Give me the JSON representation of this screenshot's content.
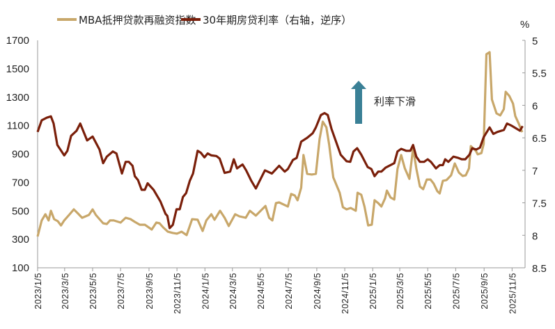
{
  "chart_data": {
    "type": "line",
    "title": "",
    "legend_position": "top",
    "grid": false,
    "left_axis": {
      "ylim": [
        100,
        1700
      ],
      "ticks": [
        "1700",
        "1500",
        "1300",
        "1100",
        "900",
        "700",
        "500",
        "300",
        "100"
      ]
    },
    "right_axis": {
      "unit": "%",
      "ylim": [
        5,
        8.5
      ],
      "reversed": true,
      "ticks": [
        "5",
        "5.5",
        "6",
        "6.5",
        "7",
        "7.5",
        "8",
        "8.5"
      ]
    },
    "x_ticks": [
      "2023/1/5",
      "2023/3/5",
      "2023/5/5",
      "2023/7/5",
      "2023/9/5",
      "2023/11/5",
      "2024/1/5",
      "2024/3/5",
      "2024/5/5",
      "2024/7/5",
      "2024/9/5",
      "2024/11/5",
      "2025/1/5",
      "2025/3/5",
      "2025/5/5",
      "2025/7/5",
      "2025/9/5",
      "2025/11/5"
    ],
    "annotation": {
      "text": "利率下滑",
      "arrow_color": "#3a8096",
      "arrow_direction": "up"
    },
    "series": [
      {
        "name": "MBA抵押贷款再融资指数",
        "axis": "left",
        "color": "#c8a76a",
        "points": [
          [
            "2023/1/5",
            320
          ],
          [
            "2023/1/14",
            433
          ],
          [
            "2023/1/22",
            477
          ],
          [
            "2023/1/29",
            433
          ],
          [
            "2023/2/3",
            501
          ],
          [
            "2023/2/10",
            442
          ],
          [
            "2023/2/18",
            428
          ],
          [
            "2023/2/25",
            398
          ],
          [
            "2023/3/4",
            433
          ],
          [
            "2023/3/16",
            477
          ],
          [
            "2023/3/25",
            511
          ],
          [
            "2023/4/3",
            482
          ],
          [
            "2023/4/12",
            452
          ],
          [
            "2023/4/27",
            472
          ],
          [
            "2023/5/5",
            511
          ],
          [
            "2023/5/12",
            472
          ],
          [
            "2023/5/28",
            413
          ],
          [
            "2023/6/5",
            408
          ],
          [
            "2023/6/12",
            433
          ],
          [
            "2023/6/20",
            433
          ],
          [
            "2023/7/5",
            418
          ],
          [
            "2023/7/16",
            452
          ],
          [
            "2023/7/27",
            442
          ],
          [
            "2023/8/5",
            423
          ],
          [
            "2023/8/16",
            403
          ],
          [
            "2023/8/27",
            403
          ],
          [
            "2023/9/11",
            369
          ],
          [
            "2023/9/21",
            418
          ],
          [
            "2023/9/28",
            413
          ],
          [
            "2023/10/6",
            384
          ],
          [
            "2023/10/16",
            354
          ],
          [
            "2023/10/27",
            345
          ],
          [
            "2023/11/5",
            340
          ],
          [
            "2023/11/15",
            354
          ],
          [
            "2023/11/26",
            330
          ],
          [
            "2023/12/8",
            442
          ],
          [
            "2023/12/20",
            438
          ],
          [
            "2023/12/31",
            359
          ],
          [
            "2024/1/8",
            433
          ],
          [
            "2024/1/19",
            477
          ],
          [
            "2024/1/26",
            438
          ],
          [
            "2024/2/7",
            501
          ],
          [
            "2024/2/17",
            452
          ],
          [
            "2024/2/26",
            394
          ],
          [
            "2024/3/11",
            477
          ],
          [
            "2024/3/20",
            462
          ],
          [
            "2024/4/3",
            452
          ],
          [
            "2024/4/12",
            501
          ],
          [
            "2024/4/25",
            467
          ],
          [
            "2024/5/7",
            506
          ],
          [
            "2024/5/16",
            535
          ],
          [
            "2024/5/24",
            452
          ],
          [
            "2024/5/31",
            433
          ],
          [
            "2024/6/8",
            555
          ],
          [
            "2024/6/15",
            560
          ],
          [
            "2024/7/4",
            531
          ],
          [
            "2024/7/11",
            619
          ],
          [
            "2024/7/19",
            609
          ],
          [
            "2024/7/25",
            575
          ],
          [
            "2024/8/2",
            663
          ],
          [
            "2024/8/7",
            893
          ],
          [
            "2024/8/15",
            761
          ],
          [
            "2024/8/25",
            756
          ],
          [
            "2024/9/3",
            761
          ],
          [
            "2024/9/11",
            1005
          ],
          [
            "2024/9/18",
            1128
          ],
          [
            "2024/9/26",
            1088
          ],
          [
            "2024/10/2",
            966
          ],
          [
            "2024/10/11",
            736
          ],
          [
            "2024/10/25",
            628
          ],
          [
            "2024/11/1",
            526
          ],
          [
            "2024/11/9",
            511
          ],
          [
            "2024/11/18",
            521
          ],
          [
            "2024/11/29",
            501
          ],
          [
            "2024/12/3",
            628
          ],
          [
            "2024/12/11",
            614
          ],
          [
            "2024/12/18",
            531
          ],
          [
            "2024/12/26",
            398
          ],
          [
            "2025/1/3",
            403
          ],
          [
            "2025/1/9",
            575
          ],
          [
            "2025/1/17",
            555
          ],
          [
            "2025/1/24",
            531
          ],
          [
            "2025/2/1",
            589
          ],
          [
            "2025/2/5",
            643
          ],
          [
            "2025/2/13",
            594
          ],
          [
            "2025/2/21",
            580
          ],
          [
            "2025/2/28",
            795
          ],
          [
            "2025/3/8",
            893
          ],
          [
            "2025/3/16",
            800
          ],
          [
            "2025/3/26",
            726
          ],
          [
            "2025/4/3",
            942
          ],
          [
            "2025/4/10",
            800
          ],
          [
            "2025/4/18",
            672
          ],
          [
            "2025/4/25",
            653
          ],
          [
            "2025/5/3",
            721
          ],
          [
            "2025/5/11",
            721
          ],
          [
            "2025/5/18",
            692
          ],
          [
            "2025/5/26",
            638
          ],
          [
            "2025/5/31",
            623
          ],
          [
            "2025/6/7",
            712
          ],
          [
            "2025/6/15",
            717
          ],
          [
            "2025/6/25",
            751
          ],
          [
            "2025/7/3",
            834
          ],
          [
            "2025/7/12",
            770
          ],
          [
            "2025/7/20",
            746
          ],
          [
            "2025/7/27",
            751
          ],
          [
            "2025/8/3",
            800
          ],
          [
            "2025/8/7",
            956
          ],
          [
            "2025/8/18",
            922
          ],
          [
            "2025/8/22",
            898
          ],
          [
            "2025/8/30",
            907
          ],
          [
            "2025/9/4",
            971
          ],
          [
            "2025/9/10",
            1602
          ],
          [
            "2025/9/17",
            1617
          ],
          [
            "2025/9/22",
            1284
          ],
          [
            "2025/10/2",
            1186
          ],
          [
            "2025/10/10",
            1172
          ],
          [
            "2025/10/18",
            1216
          ],
          [
            "2025/10/22",
            1338
          ],
          [
            "2025/10/30",
            1309
          ],
          [
            "2025/11/7",
            1255
          ],
          [
            "2025/11/12",
            1167
          ],
          [
            "2025/11/19",
            1118
          ],
          [
            "2025/11/27",
            1054
          ]
        ]
      },
      {
        "name": "30年期房贷利率（右轴，逆序）",
        "axis": "right",
        "color": "#7a1f0a",
        "points": [
          [
            "2023/1/5",
            6.41
          ],
          [
            "2023/1/14",
            6.23
          ],
          [
            "2023/1/25",
            6.19
          ],
          [
            "2023/2/3",
            6.17
          ],
          [
            "2023/2/9",
            6.28
          ],
          [
            "2023/2/17",
            6.61
          ],
          [
            "2023/3/4",
            6.77
          ],
          [
            "2023/3/11",
            6.7
          ],
          [
            "2023/3/19",
            6.47
          ],
          [
            "2023/3/31",
            6.39
          ],
          [
            "2023/4/8",
            6.28
          ],
          [
            "2023/4/23",
            6.54
          ],
          [
            "2023/5/5",
            6.48
          ],
          [
            "2023/5/20",
            6.68
          ],
          [
            "2023/5/28",
            6.89
          ],
          [
            "2023/6/5",
            6.79
          ],
          [
            "2023/6/18",
            6.71
          ],
          [
            "2023/6/26",
            6.74
          ],
          [
            "2023/7/8",
            7.05
          ],
          [
            "2023/7/16",
            6.87
          ],
          [
            "2023/7/23",
            6.87
          ],
          [
            "2023/7/31",
            6.93
          ],
          [
            "2023/8/5",
            7.09
          ],
          [
            "2023/8/12",
            7.15
          ],
          [
            "2023/8/20",
            7.3
          ],
          [
            "2023/8/27",
            7.3
          ],
          [
            "2023/9/2",
            7.2
          ],
          [
            "2023/9/15",
            7.3
          ],
          [
            "2023/9/30",
            7.48
          ],
          [
            "2023/10/11",
            7.67
          ],
          [
            "2023/10/15",
            7.7
          ],
          [
            "2023/10/20",
            7.89
          ],
          [
            "2023/10/27",
            7.84
          ],
          [
            "2023/11/4",
            7.6
          ],
          [
            "2023/11/11",
            7.6
          ],
          [
            "2023/11/18",
            7.41
          ],
          [
            "2023/11/25",
            7.35
          ],
          [
            "2023/12/3",
            7.16
          ],
          [
            "2023/12/10",
            7.05
          ],
          [
            "2023/12/20",
            6.7
          ],
          [
            "2023/12/27",
            6.73
          ],
          [
            "2024/1/4",
            6.8
          ],
          [
            "2024/1/11",
            6.74
          ],
          [
            "2024/1/19",
            6.77
          ],
          [
            "2024/1/30",
            6.78
          ],
          [
            "2024/2/6",
            6.82
          ],
          [
            "2024/2/17",
            7.04
          ],
          [
            "2024/2/29",
            7.02
          ],
          [
            "2024/3/8",
            6.83
          ],
          [
            "2024/3/15",
            6.97
          ],
          [
            "2024/3/27",
            6.91
          ],
          [
            "2024/4/4",
            7.0
          ],
          [
            "2024/4/15",
            7.16
          ],
          [
            "2024/4/25",
            7.28
          ],
          [
            "2024/5/5",
            7.14
          ],
          [
            "2024/5/15",
            7.0
          ],
          [
            "2024/5/30",
            7.05
          ],
          [
            "2024/6/15",
            6.93
          ],
          [
            "2024/6/27",
            7.02
          ],
          [
            "2024/7/4",
            6.98
          ],
          [
            "2024/7/15",
            6.84
          ],
          [
            "2024/7/23",
            6.81
          ],
          [
            "2024/8/2",
            6.56
          ],
          [
            "2024/8/15",
            6.5
          ],
          [
            "2024/8/27",
            6.43
          ],
          [
            "2024/9/3",
            6.34
          ],
          [
            "2024/9/14",
            6.15
          ],
          [
            "2024/9/22",
            6.12
          ],
          [
            "2024/9/29",
            6.15
          ],
          [
            "2024/10/7",
            6.36
          ],
          [
            "2024/10/14",
            6.5
          ],
          [
            "2024/10/27",
            6.76
          ],
          [
            "2024/11/9",
            6.86
          ],
          [
            "2024/11/17",
            6.87
          ],
          [
            "2024/11/24",
            6.71
          ],
          [
            "2024/12/2",
            6.66
          ],
          [
            "2024/12/11",
            6.76
          ],
          [
            "2024/12/25",
            6.95
          ],
          [
            "2025/1/2",
            6.98
          ],
          [
            "2025/1/9",
            7.09
          ],
          [
            "2025/1/17",
            7.02
          ],
          [
            "2025/1/24",
            7.02
          ],
          [
            "2025/2/2",
            6.96
          ],
          [
            "2025/2/21",
            6.89
          ],
          [
            "2025/2/28",
            6.71
          ],
          [
            "2025/3/8",
            6.67
          ],
          [
            "2025/3/19",
            6.7
          ],
          [
            "2025/3/28",
            6.7
          ],
          [
            "2025/4/3",
            6.61
          ],
          [
            "2025/4/10",
            6.79
          ],
          [
            "2025/4/18",
            6.87
          ],
          [
            "2025/4/27",
            6.87
          ],
          [
            "2025/5/5",
            6.83
          ],
          [
            "2025/5/12",
            6.87
          ],
          [
            "2025/5/23",
            6.97
          ],
          [
            "2025/5/31",
            6.92
          ],
          [
            "2025/6/7",
            6.92
          ],
          [
            "2025/6/12",
            6.83
          ],
          [
            "2025/6/19",
            6.87
          ],
          [
            "2025/6/30",
            6.79
          ],
          [
            "2025/7/11",
            6.81
          ],
          [
            "2025/7/18",
            6.83
          ],
          [
            "2025/7/26",
            6.83
          ],
          [
            "2025/8/4",
            6.76
          ],
          [
            "2025/8/10",
            6.66
          ],
          [
            "2025/8/19",
            6.68
          ],
          [
            "2025/8/27",
            6.65
          ],
          [
            "2025/9/4",
            6.49
          ],
          [
            "2025/9/17",
            6.34
          ],
          [
            "2025/9/25",
            6.44
          ],
          [
            "2025/10/4",
            6.41
          ],
          [
            "2025/10/18",
            6.38
          ],
          [
            "2025/10/25",
            6.28
          ],
          [
            "2025/11/3",
            6.31
          ],
          [
            "2025/11/22",
            6.39
          ],
          [
            "2025/11/28",
            6.32
          ]
        ]
      }
    ]
  }
}
